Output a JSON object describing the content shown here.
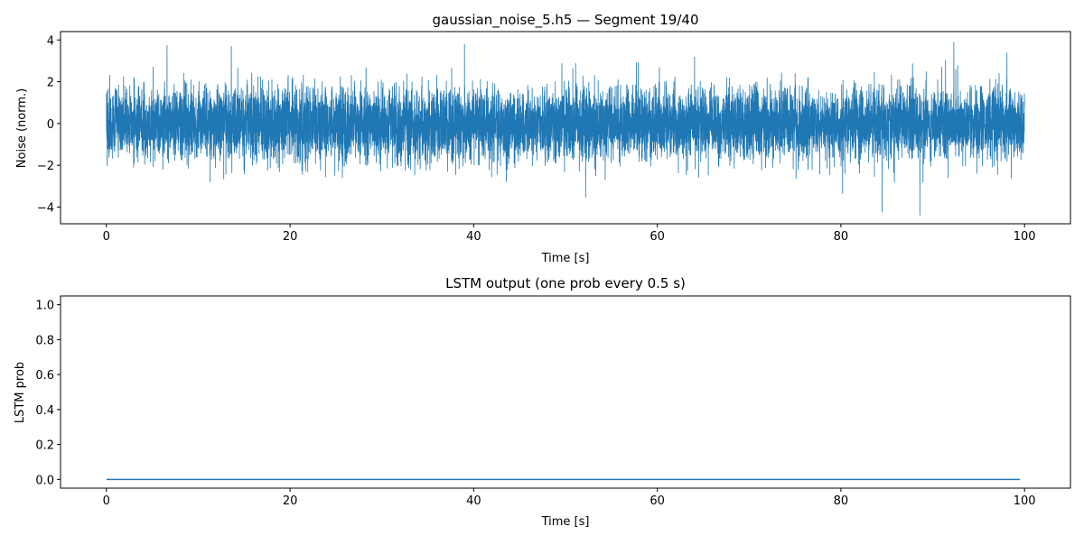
{
  "chart_data": [
    {
      "type": "line",
      "title": "gaussian_noise_5.h5 — Segment 19/40",
      "xlabel": "Time [s]",
      "ylabel": "Noise (norm.)",
      "xlim": [
        -5,
        105
      ],
      "ylim": [
        -4.8,
        4.4
      ],
      "xticks": [
        0,
        20,
        40,
        60,
        80,
        100
      ],
      "yticks": [
        -4,
        -2,
        0,
        2,
        4
      ],
      "grid": false,
      "series": [
        {
          "name": "noise",
          "color": "#1f77b4",
          "x_range": [
            0,
            100
          ],
          "n_samples": 10000,
          "distribution": {
            "type": "gaussian",
            "mean": 0,
            "std": 0.85
          },
          "extremes": [
            {
              "x": 92.3,
              "y": 3.9
            },
            {
              "x": 39.0,
              "y": 3.8
            },
            {
              "x": 6.6,
              "y": 3.75
            },
            {
              "x": 13.6,
              "y": 3.7
            },
            {
              "x": 88.6,
              "y": -4.4
            },
            {
              "x": 84.5,
              "y": -4.25
            },
            {
              "x": 52.2,
              "y": -3.55
            }
          ]
        }
      ]
    },
    {
      "type": "line",
      "title": "LSTM output (one prob every 0.5 s)",
      "xlabel": "Time [s]",
      "ylabel": "LSTM prob",
      "xlim": [
        -5,
        105
      ],
      "ylim": [
        -0.05,
        1.05
      ],
      "xticks": [
        0,
        20,
        40,
        60,
        80,
        100
      ],
      "yticks": [
        0.0,
        0.2,
        0.4,
        0.6,
        0.8,
        1.0
      ],
      "grid": false,
      "series": [
        {
          "name": "LSTM prob",
          "color": "#1f77b4",
          "x_start": 0,
          "x_step": 0.5,
          "values": [
            0,
            0,
            0,
            0,
            0,
            0,
            0,
            0,
            0,
            0,
            0,
            0,
            0,
            0,
            0,
            0,
            0,
            0,
            0,
            0,
            0,
            0,
            0,
            0,
            0,
            0,
            0,
            0,
            0,
            0,
            0,
            0,
            0,
            0,
            0,
            0,
            0,
            0,
            0,
            0,
            0,
            0,
            0,
            0,
            0,
            0,
            0,
            0,
            0,
            0,
            0,
            0,
            0,
            0,
            0,
            0,
            0,
            0,
            0,
            0,
            0,
            0,
            0,
            0,
            0,
            0,
            0,
            0,
            0,
            0,
            0,
            0,
            0,
            0,
            0,
            0,
            0,
            0,
            0,
            0,
            0,
            0,
            0,
            0,
            0,
            0,
            0,
            0,
            0,
            0,
            0,
            0,
            0,
            0,
            0,
            0,
            0,
            0,
            0,
            0,
            0,
            0,
            0,
            0,
            0,
            0,
            0,
            0,
            0,
            0,
            0,
            0,
            0,
            0,
            0,
            0,
            0,
            0,
            0,
            0,
            0,
            0,
            0,
            0,
            0,
            0,
            0,
            0,
            0,
            0,
            0,
            0,
            0,
            0,
            0,
            0,
            0,
            0,
            0,
            0,
            0,
            0,
            0,
            0,
            0,
            0,
            0,
            0,
            0,
            0,
            0,
            0,
            0,
            0,
            0,
            0,
            0,
            0,
            0,
            0,
            0,
            0,
            0,
            0,
            0,
            0,
            0,
            0,
            0,
            0,
            0,
            0,
            0,
            0,
            0,
            0,
            0,
            0,
            0,
            0,
            0,
            0,
            0,
            0,
            0,
            0,
            0,
            0,
            0,
            0,
            0,
            0,
            0,
            0,
            0,
            0,
            0,
            0,
            0,
            0
          ]
        }
      ]
    }
  ]
}
